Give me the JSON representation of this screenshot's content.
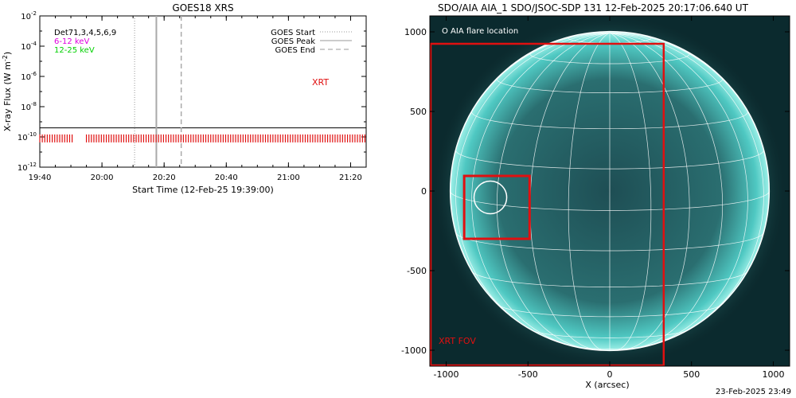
{
  "chart_data": [
    {
      "type": "line",
      "title": "GOES18 XRS",
      "ylabel": "X-ray Flux (W m",
      "ylabel_sup": "-2",
      "ylabel_close": ")",
      "xlabel": "Start Time (12-Feb-25 19:39:00)",
      "y_log_ticks": [
        {
          "base": "10",
          "exp": "-2",
          "value": -2
        },
        {
          "base": "10",
          "exp": "-4",
          "value": -4
        },
        {
          "base": "10",
          "exp": "-6",
          "value": -6
        },
        {
          "base": "10",
          "exp": "-8",
          "value": -8
        },
        {
          "base": "10",
          "exp": "-10",
          "value": -10
        },
        {
          "base": "10",
          "exp": "-12",
          "value": -12
        }
      ],
      "ylim_log10": [
        -12,
        -2
      ],
      "x_ticks": [
        {
          "label": "19:40",
          "minutes": 60
        },
        {
          "label": "20:00",
          "minutes": 80
        },
        {
          "label": "20:20",
          "minutes": 100
        },
        {
          "label": "20:40",
          "minutes": 120
        },
        {
          "label": "21:00",
          "minutes": 140
        },
        {
          "label": "21:20",
          "minutes": 160
        }
      ],
      "xlim_minutes": [
        60,
        165
      ],
      "legend_left": [
        {
          "label": "Det71,3,4,5,6,9",
          "color": "#000000"
        },
        {
          "label": "6-12 keV",
          "color": "#e000e0"
        },
        {
          "label": "12-25 keV",
          "color": "#00d000"
        }
      ],
      "legend_right": [
        {
          "label": "GOES Start",
          "style": "dotted"
        },
        {
          "label": "GOES Peak",
          "style": "solid"
        },
        {
          "label": "GOES End",
          "style": "dashed"
        }
      ],
      "xrt_label": "XRT",
      "reference_level_log10": -9.4,
      "event_lines_minutes": {
        "start": 90.5,
        "peak": 97.5,
        "end": 105.5
      },
      "xrt_bar_level_log10": -10.1,
      "xrt_intervals_minutes": [
        [
          60,
          71
        ],
        [
          75,
          165
        ]
      ]
    },
    {
      "type": "image",
      "title": "SDO/AIA AIA_1 SDO/JSOC-SDP 131 12-Feb-2025 20:17:06.640 UT",
      "xlabel": "X (arcsec)",
      "x_ticks": [
        -1000,
        -500,
        0,
        500,
        1000
      ],
      "y_ticks": [
        1000,
        500,
        0,
        -500,
        -1000
      ],
      "range_arcsec": [
        -1100,
        1100
      ],
      "legend": "O AIA flare location",
      "fov_label": "XRT FOV",
      "xrt_fov_arcsec": {
        "x0": -1100,
        "x1": 330,
        "y0": -1100,
        "y1": 925
      },
      "flare_box_arcsec": {
        "x0": -890,
        "x1": -490,
        "y0": -300,
        "y1": 95
      },
      "flare_location_arcsec": {
        "x": -730,
        "y": -40,
        "r": 100
      },
      "solar_radius_arcsec": 975,
      "colors": {
        "box": "#e01010",
        "disk": "#3fc8c0",
        "grid": "#ffffff"
      }
    }
  ],
  "footer": "23-Feb-2025 23:49"
}
